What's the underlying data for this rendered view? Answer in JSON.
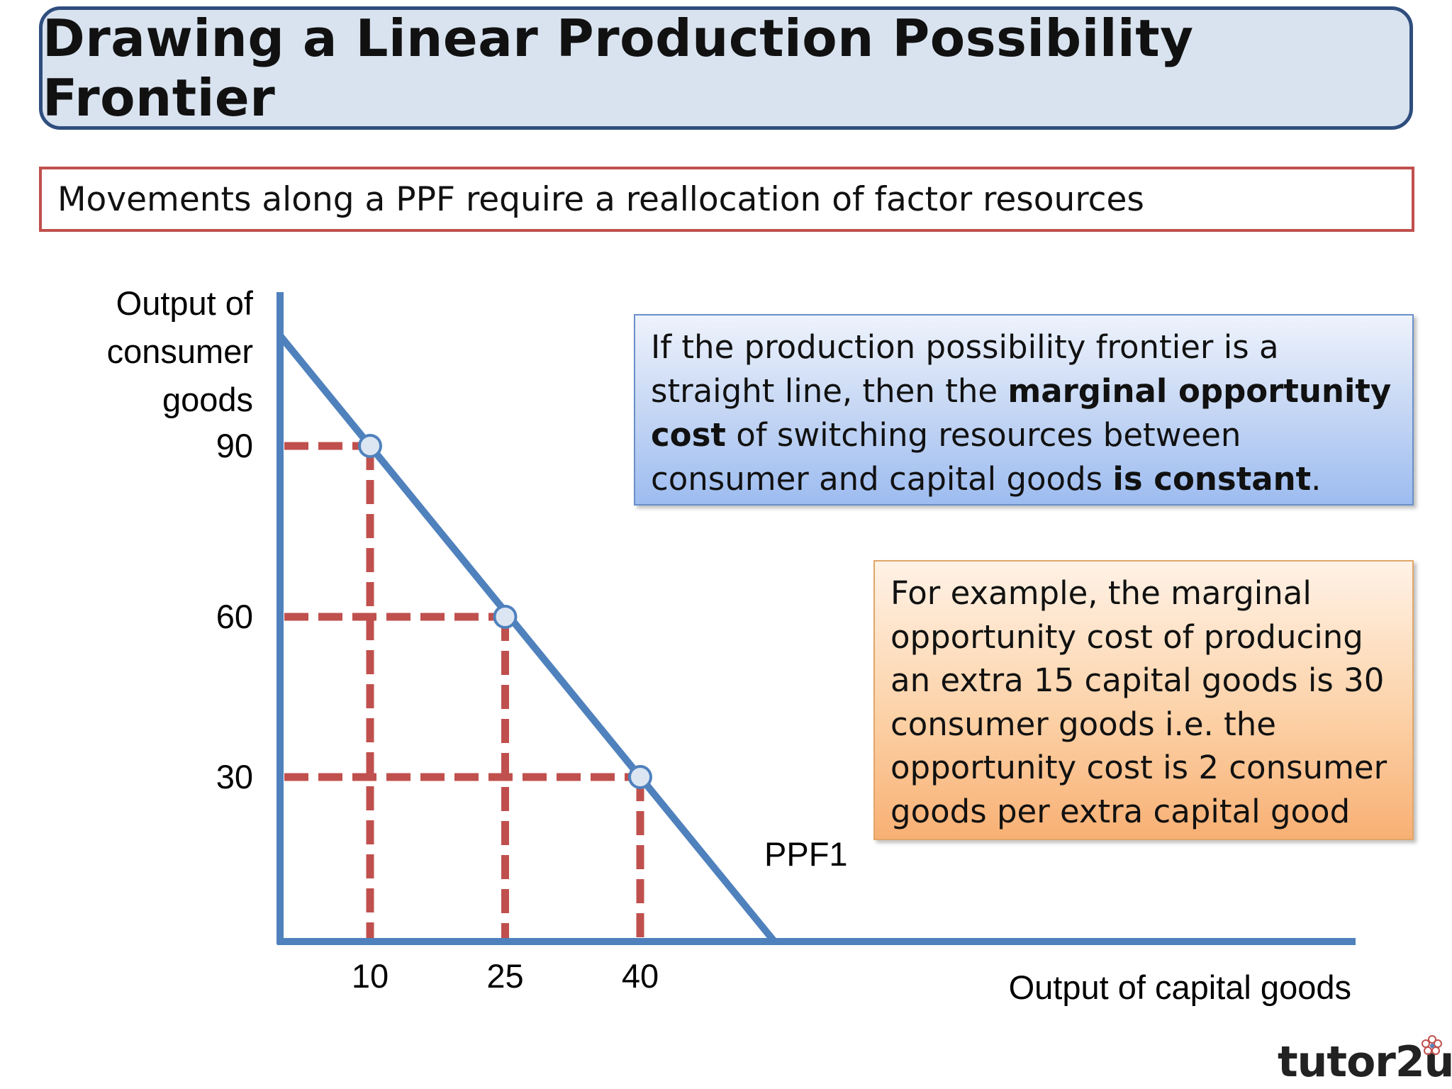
{
  "title": "Drawing a Linear Production Possibility Frontier",
  "subtitle": "Movements along a PPF require a reallocation of factor resources",
  "info_blue": {
    "part1": "If the production possibility frontier is a straight line, then the ",
    "bold1": "marginal opportunity cost",
    "part2": " of switching resources between consumer and capital goods ",
    "bold2": "is constant",
    "part3": "."
  },
  "info_orange": {
    "text": "For example, the marginal opportunity cost of producing an extra 15 capital goods is 30 consumer goods i.e. the opportunity cost is 2 consumer goods per extra capital good"
  },
  "brand": "tutor2u",
  "chart_data": {
    "type": "line",
    "ylabel_lines": [
      "Output of",
      "consumer",
      "goods"
    ],
    "xlabel": "Output of capital goods",
    "line_label": "PPF1",
    "x_ticks": [
      10,
      25,
      40
    ],
    "y_ticks": [
      90,
      60,
      30
    ],
    "points": [
      {
        "x": 10,
        "y": 90
      },
      {
        "x": 25,
        "y": 60
      },
      {
        "x": 40,
        "y": 30
      }
    ],
    "colors": {
      "axis": "#4f81bd",
      "ppf": "#4f81bd",
      "guides": "#c0504d",
      "marker_fill": "#dce6f2"
    }
  }
}
